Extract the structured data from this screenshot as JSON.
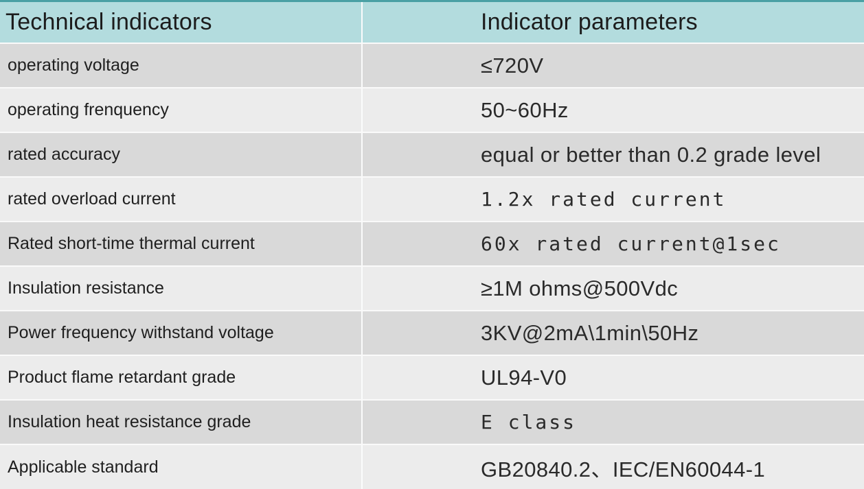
{
  "table": {
    "header": {
      "col1": "Technical indicators",
      "col2": "Indicator parameters"
    },
    "rows": [
      {
        "label": "operating voltage",
        "value": "≤720V",
        "value_font": "sans"
      },
      {
        "label": "operating frenquency",
        "value": "50~60Hz",
        "value_font": "sans"
      },
      {
        "label": "rated accuracy",
        "value": "equal or better than 0.2 grade level",
        "value_font": "sans"
      },
      {
        "label": "rated overload current",
        "value": "1.2x rated current",
        "value_font": "mono"
      },
      {
        "label": "Rated short-time thermal current",
        "value": "60x rated current@1sec",
        "value_font": "mono"
      },
      {
        "label": "Insulation resistance",
        "value": "≥1M ohms@500Vdc",
        "value_font": "sans"
      },
      {
        "label": "Power frequency withstand voltage",
        "value": "3KV@2mA\\1min\\50Hz",
        "value_font": "sans"
      },
      {
        "label": "Product flame retardant grade",
        "value": "UL94-V0",
        "value_font": "sans"
      },
      {
        "label": "Insulation heat resistance grade",
        "value": "E class",
        "value_font": "mono"
      },
      {
        "label": "Applicable standard",
        "value": "GB20840.2、IEC/EN60044-1",
        "value_font": "sans"
      }
    ],
    "colors": {
      "top_bar": "#4aa0a4",
      "header_bg": "#b3dcde",
      "row_dark": "#d9d9d9",
      "row_light": "#ececec",
      "divider": "#fbfcfc",
      "text": "#1f1f1f"
    }
  }
}
